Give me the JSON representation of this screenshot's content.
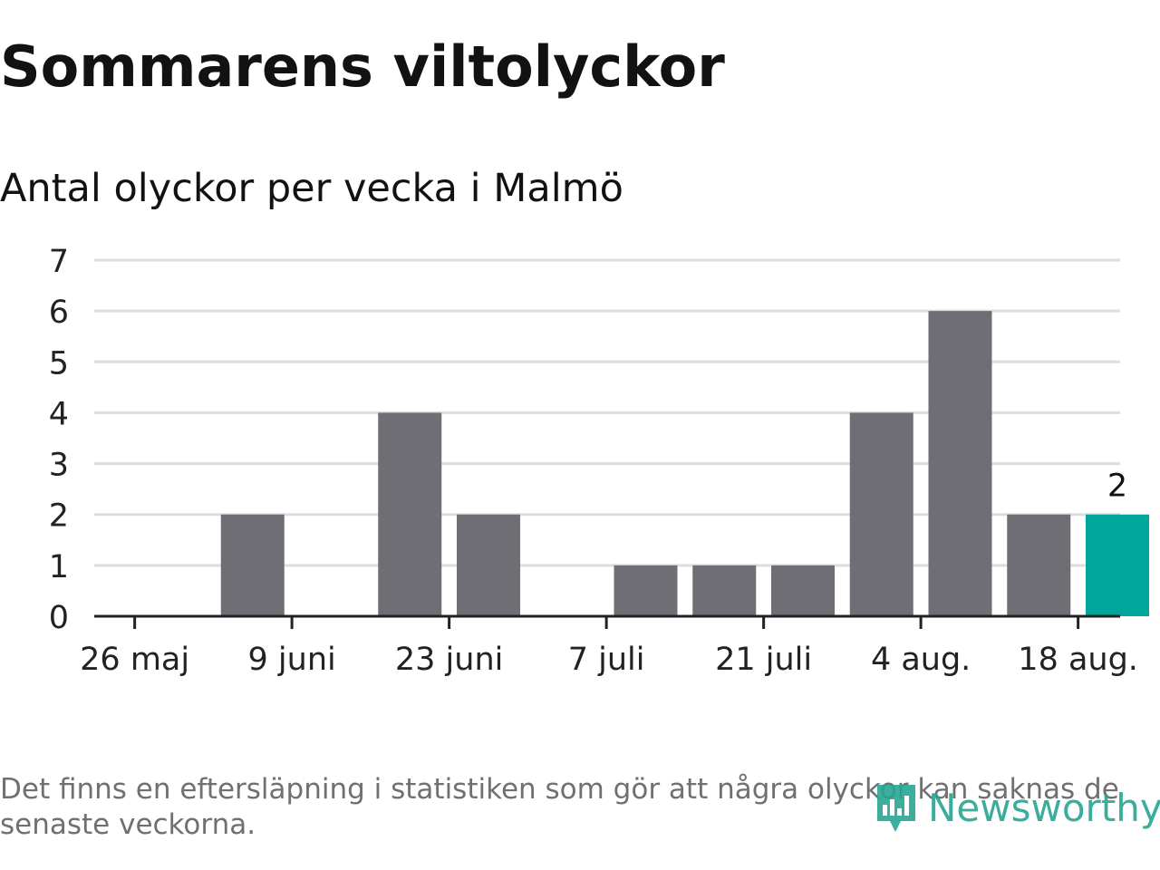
{
  "title": "Sommarens viltolyckor",
  "subtitle": "Antal olyckor per vecka i Malmö",
  "footnote": "Det finns en eftersläpning i statistiken som gör att några olyckor kan saknas de senaste veckorna.",
  "brand": {
    "name": "Newsworthy",
    "color": "#26a592",
    "icon": "newsworthy-logo-icon"
  },
  "colors": {
    "bar": "#6f6e74",
    "highlight": "#00a69a",
    "grid": "#dddddd",
    "axis": "#222222",
    "text": "#222222"
  },
  "chart_data": {
    "type": "bar",
    "x": [
      "2024-05-26",
      "2024-06-02",
      "2024-06-09",
      "2024-06-16",
      "2024-06-23",
      "2024-06-30",
      "2024-07-07",
      "2024-07-14",
      "2024-07-21",
      "2024-07-28",
      "2024-08-04",
      "2024-08-11",
      "2024-08-18"
    ],
    "values": [
      0,
      2,
      0,
      4,
      2,
      0,
      1,
      1,
      1,
      4,
      6,
      2,
      2
    ],
    "highlight_index": 12,
    "highlight_label": "2",
    "x_tick_labels": [
      "26 maj",
      "9 juni",
      "23 juni",
      "7 juli",
      "21 juli",
      "4 aug.",
      "18 aug."
    ],
    "y_ticks": [
      "0",
      "1",
      "2",
      "3",
      "4",
      "5",
      "6",
      "7"
    ],
    "ylim": [
      0,
      7
    ],
    "grid": true,
    "legend": "none",
    "xlabel": "",
    "ylabel": ""
  }
}
